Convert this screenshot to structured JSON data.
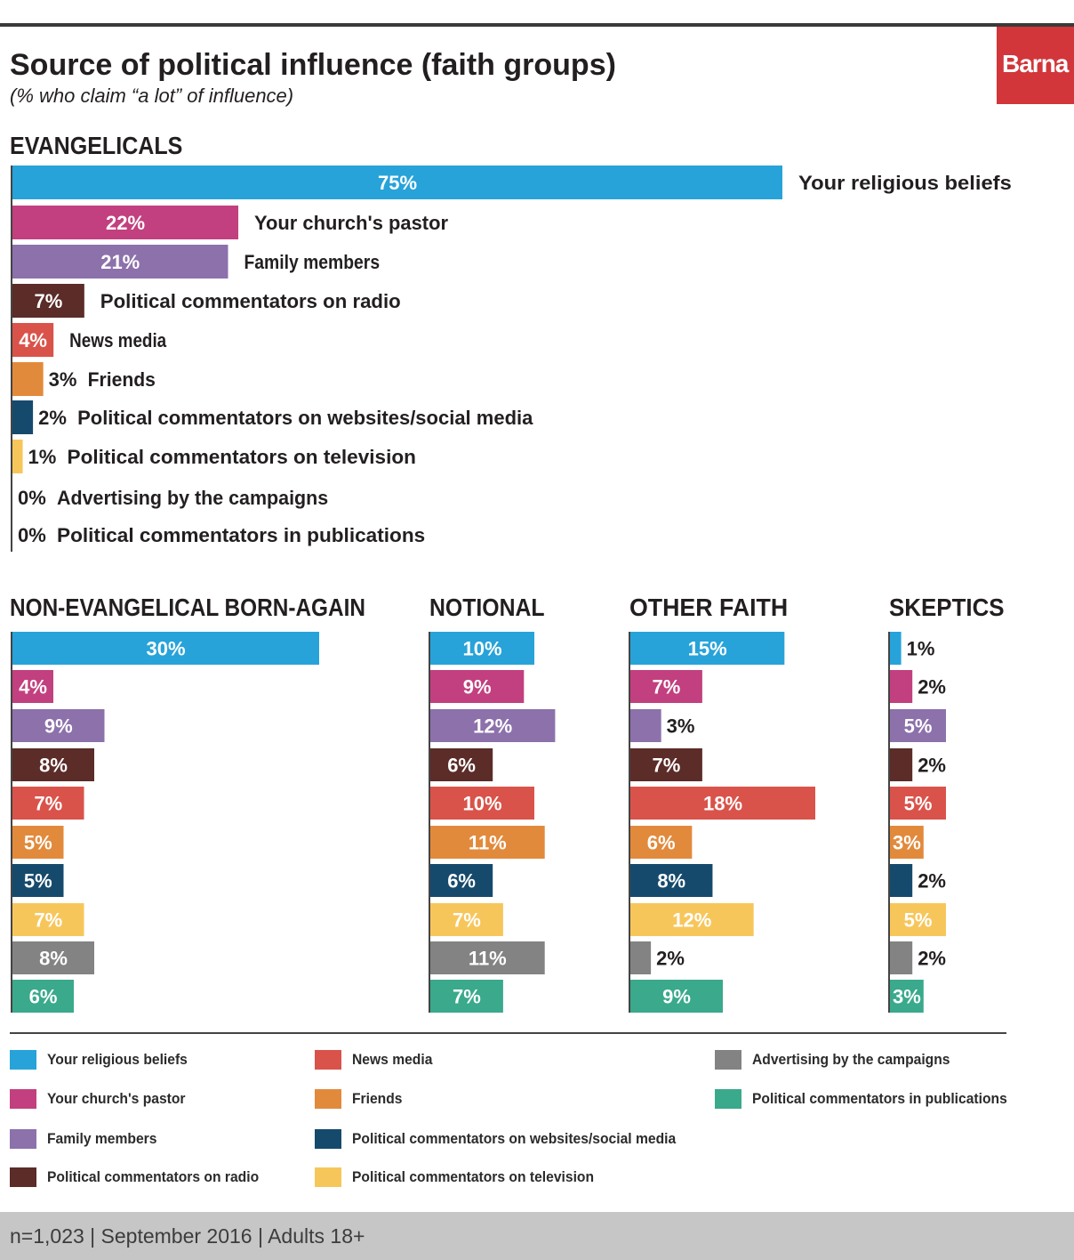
{
  "header": {
    "title": "Source of political influence (faith groups)",
    "subtitle": "(% who claim “a lot” of influence)",
    "logo": "Barna"
  },
  "footer": {
    "text": "n=1,023  |  September 2016  |  Adults 18+"
  },
  "colors": {
    "religious": "#27a3d9",
    "pastor": "#c2407f",
    "family": "#8c71ab",
    "radio": "#5b2c28",
    "news": "#d9534a",
    "friends": "#e28a3c",
    "web": "#164a6d",
    "tv": "#f7c65b",
    "ads": "#838383",
    "publications": "#3aa98c"
  },
  "legend": [
    {
      "key": "religious",
      "label": "Your religious beliefs"
    },
    {
      "key": "pastor",
      "label": "Your church's pastor"
    },
    {
      "key": "family",
      "label": "Family members"
    },
    {
      "key": "radio",
      "label": "Political commentators on radio"
    },
    {
      "key": "news",
      "label": "News media"
    },
    {
      "key": "friends",
      "label": "Friends"
    },
    {
      "key": "web",
      "label": "Political commentators on websites/social media"
    },
    {
      "key": "tv",
      "label": "Political commentators on television"
    },
    {
      "key": "ads",
      "label": "Advertising by the campaigns"
    },
    {
      "key": "publications",
      "label": "Political commentators in publications"
    }
  ],
  "chart_data": [
    {
      "type": "bar",
      "orientation": "horizontal",
      "title": "EVANGELICALS",
      "categories": [
        "Your religious beliefs",
        "Your church's pastor",
        "Family members",
        "Political commentators on radio",
        "News media",
        "Friends",
        "Political commentators on websites/social media",
        "Political commentators on television",
        "Advertising by the campaigns",
        "Political commentators in publications"
      ],
      "values": [
        75,
        22,
        21,
        7,
        4,
        3,
        2,
        1,
        0,
        0
      ],
      "value_labels": [
        "75%",
        "22%",
        "21%",
        "7%",
        "4%",
        "3%",
        "2%",
        "1%",
        "0%",
        "0%"
      ],
      "unit": "%"
    },
    {
      "type": "bar",
      "orientation": "horizontal",
      "title": "NON-EVANGELICAL BORN-AGAIN",
      "categories": [
        "Your religious beliefs",
        "Your church's pastor",
        "Family members",
        "Political commentators on radio",
        "News media",
        "Friends",
        "Political commentators on websites/social media",
        "Political commentators on television",
        "Advertising by the campaigns",
        "Political commentators in publications"
      ],
      "values": [
        30,
        4,
        9,
        8,
        7,
        5,
        5,
        7,
        8,
        6
      ],
      "value_labels": [
        "30%",
        "4%",
        "9%",
        "8%",
        "7%",
        "5%",
        "5%",
        "7%",
        "8%",
        "6%"
      ],
      "unit": "%"
    },
    {
      "type": "bar",
      "orientation": "horizontal",
      "title": "NOTIONAL",
      "categories": [
        "Your religious beliefs",
        "Your church's pastor",
        "Family members",
        "Political commentators on radio",
        "News media",
        "Friends",
        "Political commentators on websites/social media",
        "Political commentators on television",
        "Advertising by the campaigns",
        "Political commentators in publications"
      ],
      "values": [
        10,
        9,
        12,
        6,
        10,
        11,
        6,
        7,
        11,
        7
      ],
      "value_labels": [
        "10%",
        "9%",
        "12%",
        "6%",
        "10%",
        "11%",
        "6%",
        "7%",
        "11%",
        "7%"
      ],
      "unit": "%"
    },
    {
      "type": "bar",
      "orientation": "horizontal",
      "title": "OTHER FAITH",
      "categories": [
        "Your religious beliefs",
        "Your church's pastor",
        "Family members",
        "Political commentators on radio",
        "News media",
        "Friends",
        "Political commentators on websites/social media",
        "Political commentators on television",
        "Advertising by the campaigns",
        "Political commentators in publications"
      ],
      "values": [
        15,
        7,
        3,
        7,
        18,
        6,
        8,
        12,
        2,
        9
      ],
      "value_labels": [
        "15%",
        "7%",
        "3%",
        "7%",
        "18%",
        "6%",
        "8%",
        "12%",
        "2%",
        "9%"
      ],
      "unit": "%"
    },
    {
      "type": "bar",
      "orientation": "horizontal",
      "title": "SKEPTICS",
      "categories": [
        "Your religious beliefs",
        "Your church's pastor",
        "Family members",
        "Political commentators on radio",
        "News media",
        "Friends",
        "Political commentators on websites/social media",
        "Political commentators on television",
        "Advertising by the campaigns",
        "Political commentators in publications"
      ],
      "values": [
        1,
        2,
        5,
        2,
        5,
        3,
        2,
        5,
        2,
        3
      ],
      "value_labels": [
        "1%",
        "2%",
        "5%",
        "2%",
        "5%",
        "3%",
        "2%",
        "5%",
        "2%",
        "3%"
      ],
      "unit": "%"
    }
  ]
}
